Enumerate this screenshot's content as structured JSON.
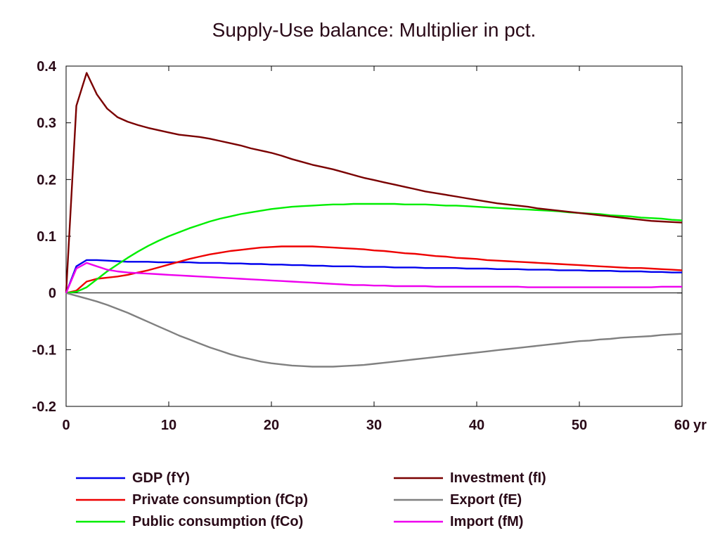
{
  "chart_data": {
    "type": "line",
    "title": "Supply-Use balance: Multiplier in pct.",
    "xlabel": "",
    "ylabel": "",
    "x_unit_label": "yr",
    "xlim": [
      0,
      60
    ],
    "ylim": [
      -0.2,
      0.4
    ],
    "x_ticks": [
      0,
      10,
      20,
      30,
      40,
      50,
      60
    ],
    "x_tick_labels": [
      "0",
      "10",
      "20",
      "30",
      "40",
      "50",
      "60"
    ],
    "y_ticks": [
      -0.2,
      -0.1,
      0,
      0.1,
      0.2,
      0.3,
      0.4
    ],
    "y_tick_labels": [
      "-0.2",
      "-0.1",
      "0",
      "0.1",
      "0.2",
      "0.3",
      "0.4"
    ],
    "grid": false,
    "zero_line": true,
    "legend_position": "bottom",
    "x": [
      0,
      1,
      2,
      3,
      4,
      5,
      6,
      7,
      8,
      9,
      10,
      11,
      12,
      13,
      14,
      15,
      16,
      17,
      18,
      19,
      20,
      21,
      22,
      23,
      24,
      25,
      26,
      27,
      28,
      29,
      30,
      31,
      32,
      33,
      34,
      35,
      36,
      37,
      38,
      39,
      40,
      41,
      42,
      43,
      44,
      45,
      46,
      47,
      48,
      49,
      50,
      51,
      52,
      53,
      54,
      55,
      56,
      57,
      58,
      59,
      60
    ],
    "series": [
      {
        "name": "GDP (fY)",
        "color": "#0000ee",
        "values": [
          0,
          0.047,
          0.058,
          0.058,
          0.057,
          0.056,
          0.055,
          0.055,
          0.055,
          0.054,
          0.054,
          0.054,
          0.054,
          0.053,
          0.053,
          0.053,
          0.052,
          0.052,
          0.051,
          0.051,
          0.05,
          0.05,
          0.049,
          0.049,
          0.048,
          0.048,
          0.047,
          0.047,
          0.047,
          0.046,
          0.046,
          0.046,
          0.045,
          0.045,
          0.045,
          0.044,
          0.044,
          0.044,
          0.044,
          0.043,
          0.043,
          0.043,
          0.042,
          0.042,
          0.042,
          0.041,
          0.041,
          0.041,
          0.04,
          0.04,
          0.04,
          0.039,
          0.039,
          0.039,
          0.038,
          0.038,
          0.038,
          0.037,
          0.037,
          0.036,
          0.036
        ]
      },
      {
        "name": "Private consumption (fCp)",
        "color": "#ee0000",
        "values": [
          0,
          0.004,
          0.02,
          0.025,
          0.027,
          0.029,
          0.032,
          0.036,
          0.04,
          0.045,
          0.05,
          0.055,
          0.06,
          0.064,
          0.068,
          0.071,
          0.074,
          0.076,
          0.078,
          0.08,
          0.081,
          0.082,
          0.082,
          0.082,
          0.082,
          0.081,
          0.08,
          0.079,
          0.078,
          0.077,
          0.075,
          0.074,
          0.072,
          0.07,
          0.069,
          0.067,
          0.065,
          0.064,
          0.062,
          0.061,
          0.06,
          0.058,
          0.057,
          0.056,
          0.055,
          0.054,
          0.053,
          0.052,
          0.051,
          0.05,
          0.049,
          0.048,
          0.047,
          0.046,
          0.045,
          0.044,
          0.044,
          0.043,
          0.042,
          0.041,
          0.04
        ]
      },
      {
        "name": "Public consumption (fCo)",
        "color": "#00ee00",
        "values": [
          0,
          0.002,
          0.01,
          0.024,
          0.038,
          0.05,
          0.062,
          0.073,
          0.083,
          0.092,
          0.1,
          0.107,
          0.114,
          0.12,
          0.126,
          0.131,
          0.135,
          0.139,
          0.142,
          0.145,
          0.148,
          0.15,
          0.152,
          0.153,
          0.154,
          0.155,
          0.156,
          0.156,
          0.157,
          0.157,
          0.157,
          0.157,
          0.157,
          0.156,
          0.156,
          0.156,
          0.155,
          0.154,
          0.154,
          0.153,
          0.152,
          0.151,
          0.15,
          0.149,
          0.148,
          0.147,
          0.146,
          0.145,
          0.144,
          0.142,
          0.141,
          0.14,
          0.139,
          0.137,
          0.136,
          0.135,
          0.133,
          0.132,
          0.131,
          0.129,
          0.128
        ]
      },
      {
        "name": "Investment (fI)",
        "color": "#7a0000",
        "values": [
          0,
          0.33,
          0.388,
          0.35,
          0.325,
          0.31,
          0.302,
          0.296,
          0.291,
          0.287,
          0.283,
          0.279,
          0.277,
          0.275,
          0.272,
          0.268,
          0.264,
          0.26,
          0.255,
          0.251,
          0.247,
          0.242,
          0.236,
          0.231,
          0.226,
          0.222,
          0.218,
          0.213,
          0.208,
          0.203,
          0.199,
          0.195,
          0.191,
          0.187,
          0.183,
          0.179,
          0.176,
          0.173,
          0.17,
          0.167,
          0.164,
          0.161,
          0.158,
          0.156,
          0.154,
          0.152,
          0.149,
          0.147,
          0.145,
          0.143,
          0.141,
          0.139,
          0.137,
          0.135,
          0.133,
          0.131,
          0.129,
          0.127,
          0.126,
          0.125,
          0.124
        ]
      },
      {
        "name": "Export (fE)",
        "color": "#808080",
        "values": [
          0,
          -0.005,
          -0.01,
          -0.015,
          -0.021,
          -0.028,
          -0.035,
          -0.043,
          -0.051,
          -0.059,
          -0.067,
          -0.075,
          -0.082,
          -0.089,
          -0.096,
          -0.102,
          -0.108,
          -0.113,
          -0.117,
          -0.121,
          -0.124,
          -0.126,
          -0.128,
          -0.129,
          -0.13,
          -0.13,
          -0.13,
          -0.129,
          -0.128,
          -0.127,
          -0.125,
          -0.123,
          -0.121,
          -0.119,
          -0.117,
          -0.115,
          -0.113,
          -0.111,
          -0.109,
          -0.107,
          -0.105,
          -0.103,
          -0.101,
          -0.099,
          -0.097,
          -0.095,
          -0.093,
          -0.091,
          -0.089,
          -0.087,
          -0.085,
          -0.084,
          -0.082,
          -0.081,
          -0.079,
          -0.078,
          -0.077,
          -0.076,
          -0.074,
          -0.073,
          -0.072
        ]
      },
      {
        "name": "Import (fM)",
        "color": "#ee00ee",
        "values": [
          0,
          0.043,
          0.053,
          0.047,
          0.041,
          0.038,
          0.036,
          0.035,
          0.034,
          0.033,
          0.032,
          0.031,
          0.03,
          0.029,
          0.028,
          0.027,
          0.026,
          0.025,
          0.024,
          0.023,
          0.022,
          0.021,
          0.02,
          0.019,
          0.018,
          0.017,
          0.016,
          0.015,
          0.014,
          0.014,
          0.013,
          0.013,
          0.012,
          0.012,
          0.012,
          0.012,
          0.011,
          0.011,
          0.011,
          0.011,
          0.011,
          0.011,
          0.011,
          0.011,
          0.011,
          0.01,
          0.01,
          0.01,
          0.01,
          0.01,
          0.01,
          0.01,
          0.01,
          0.01,
          0.01,
          0.01,
          0.01,
          0.01,
          0.011,
          0.011,
          0.011
        ]
      }
    ]
  }
}
